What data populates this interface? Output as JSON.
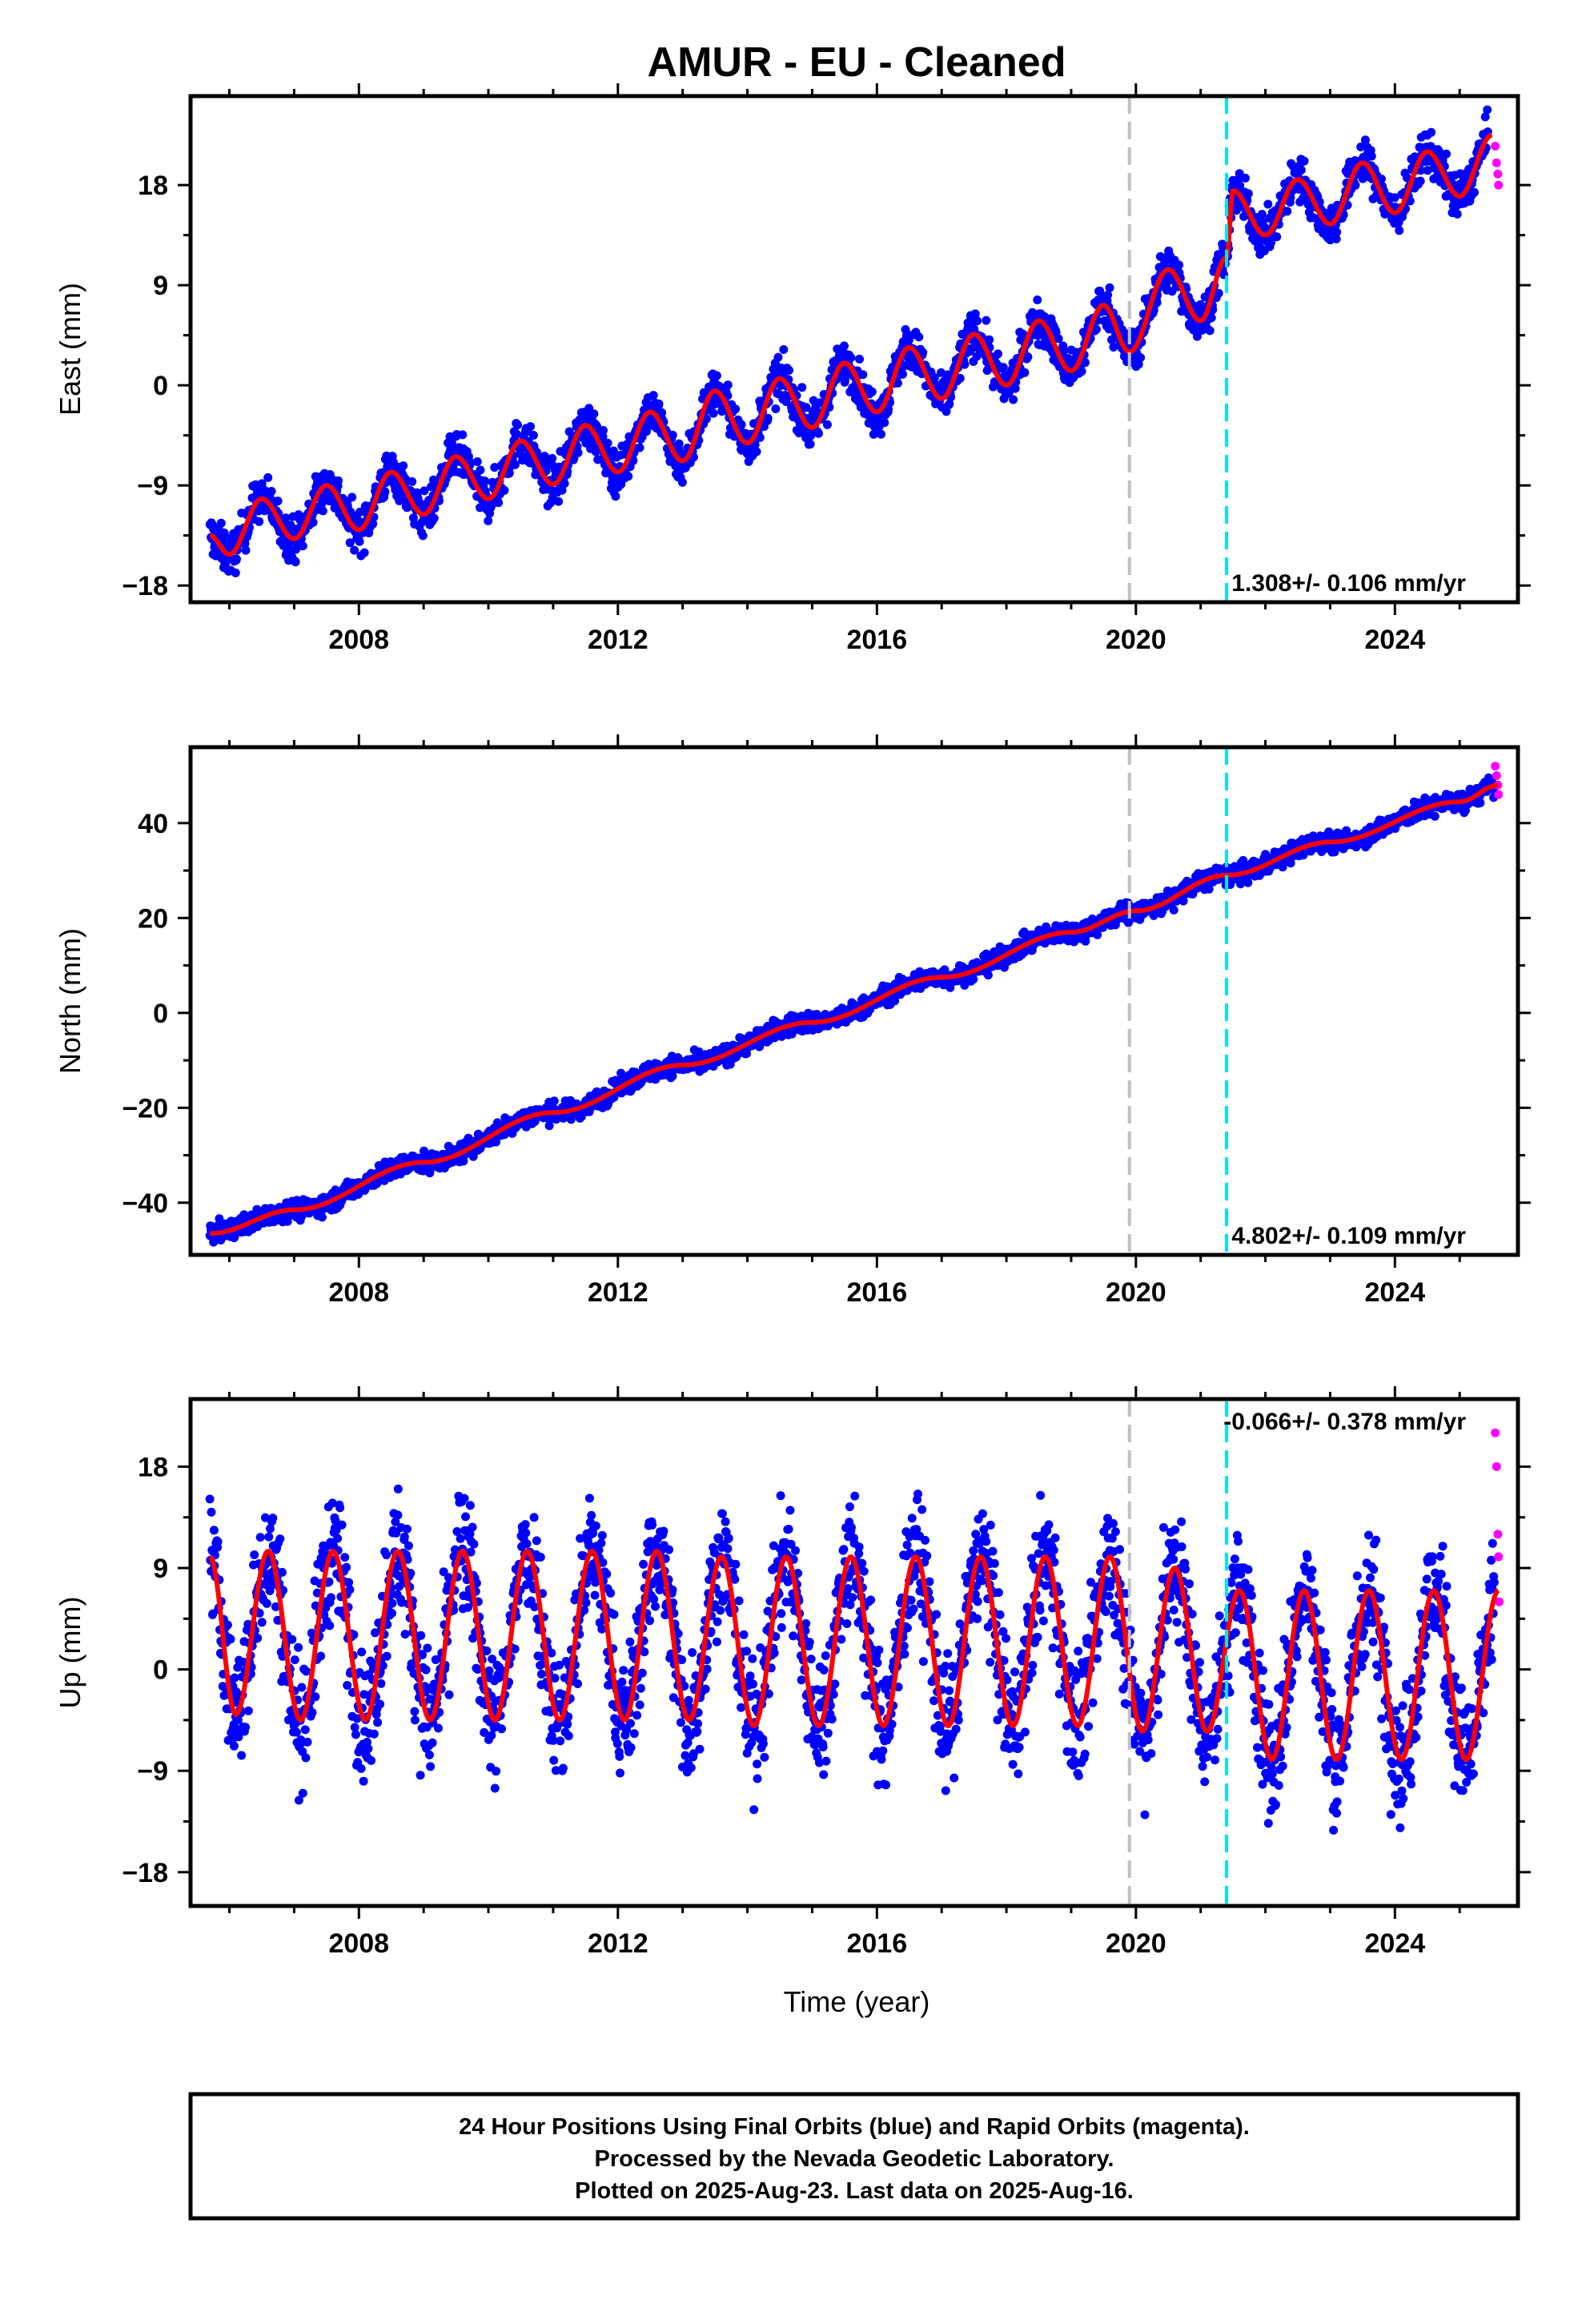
{
  "title": "AMUR  - EU - Cleaned",
  "xlabel": "Time (year)",
  "caption": [
    "24 Hour Positions Using Final Orbits (blue) and Rapid Orbits (magenta).",
    "Processed by the Nevada Geodetic Laboratory.",
    "Plotted on 2025-Aug-23. Last data on 2025-Aug-16."
  ],
  "colors": {
    "final": "#0000ff",
    "rapid": "#ff00ff",
    "model": "#ff0000",
    "event_gray": "#c0c0c0",
    "event_cyan": "#00e5ee"
  },
  "chart_data": [
    {
      "type": "scatter",
      "ylabel": "East (mm)",
      "xlim": [
        2005.4,
        2025.9
      ],
      "ylim": [
        -19.5,
        26
      ],
      "yticks": [
        -18,
        -9,
        0,
        9,
        18
      ],
      "xticks": [
        2008,
        2012,
        2016,
        2020,
        2024
      ],
      "rate_label": "1.308+/- 0.106 mm/yr",
      "rate_position": "bottom-right",
      "events": [
        {
          "x": 2019.9,
          "color": "gray"
        },
        {
          "x": 2021.4,
          "color": "cyan"
        }
      ],
      "model_knots": {
        "x": [
          2005.7,
          2006.0,
          2006.5,
          2007.0,
          2007.5,
          2008.0,
          2008.5,
          2009.0,
          2009.5,
          2010.0,
          2010.5,
          2011.0,
          2011.5,
          2012.0,
          2012.5,
          2013.0,
          2013.5,
          2014.0,
          2014.5,
          2015.0,
          2015.5,
          2016.0,
          2016.5,
          2017.0,
          2017.5,
          2018.0,
          2018.5,
          2019.0,
          2019.5,
          2019.9,
          2020.5,
          2021.0,
          2021.4,
          2021.5,
          2022.0,
          2022.5,
          2023.0,
          2023.5,
          2024.0,
          2024.5,
          2025.0,
          2025.5
        ],
        "y": [
          -13.5,
          -15.2,
          -10.2,
          -13.8,
          -9.0,
          -13.0,
          -7.8,
          -11.6,
          -6.4,
          -10.2,
          -5.0,
          -8.9,
          -3.6,
          -7.8,
          -2.4,
          -6.8,
          -0.5,
          -5.2,
          0.6,
          -3.8,
          2.0,
          -2.4,
          3.4,
          -1.2,
          4.6,
          0.0,
          5.8,
          1.3,
          7.2,
          3.0,
          10.4,
          5.8,
          11.5,
          17.5,
          13.5,
          18.5,
          14.5,
          20.0,
          15.5,
          21.0,
          17.0,
          22.5
        ]
      },
      "scatter_amplitude_mm": 1.7,
      "rapid_points": {
        "x": [
          2025.55,
          2025.57,
          2025.59,
          2025.6
        ],
        "y": [
          21.5,
          20.0,
          19.0,
          18.0
        ]
      }
    },
    {
      "type": "scatter",
      "ylabel": "North (mm)",
      "xlim": [
        2005.4,
        2025.9
      ],
      "ylim": [
        -51,
        56
      ],
      "yticks": [
        -40,
        -20,
        0,
        20,
        40
      ],
      "xticks": [
        2008,
        2012,
        2016,
        2020,
        2024
      ],
      "rate_label": "4.802+/- 0.109 mm/yr",
      "rate_position": "bottom-right",
      "events": [
        {
          "x": 2019.9,
          "color": "gray"
        },
        {
          "x": 2021.4,
          "color": "cyan"
        }
      ],
      "model_knots": {
        "x": [
          2005.7,
          2007.0,
          2009.0,
          2011.0,
          2013.0,
          2015.0,
          2017.0,
          2019.0,
          2020.0,
          2021.4,
          2023.0,
          2025.0,
          2025.6
        ],
        "y": [
          -46.5,
          -41.5,
          -31.5,
          -21.0,
          -11.0,
          -2.0,
          7.5,
          17.0,
          21.5,
          29.0,
          36.0,
          44.5,
          48.0
        ]
      },
      "scatter_amplitude_mm": 1.8,
      "rapid_points": {
        "x": [
          2025.55,
          2025.57,
          2025.59,
          2025.6
        ],
        "y": [
          52.0,
          50.0,
          48.0,
          46.0
        ]
      }
    },
    {
      "type": "scatter",
      "ylabel": "Up (mm)",
      "xlim": [
        2005.4,
        2025.9
      ],
      "ylim": [
        -21,
        24
      ],
      "yticks": [
        -18,
        -9,
        0,
        9,
        18
      ],
      "xticks": [
        2008,
        2012,
        2016,
        2020,
        2024
      ],
      "rate_label": "-0.066+/- 0.378 mm/yr",
      "rate_position": "top-right",
      "events": [
        {
          "x": 2019.9,
          "color": "gray"
        },
        {
          "x": 2021.4,
          "color": "cyan"
        }
      ],
      "model_knots": {
        "x": [
          2005.7,
          2006.1,
          2006.6,
          2007.1,
          2007.6,
          2008.1,
          2008.6,
          2009.1,
          2009.6,
          2010.1,
          2010.6,
          2011.1,
          2011.6,
          2012.1,
          2012.6,
          2013.1,
          2013.6,
          2014.1,
          2014.6,
          2015.1,
          2015.6,
          2016.1,
          2016.6,
          2017.1,
          2017.6,
          2018.1,
          2018.6,
          2019.1,
          2019.6,
          2020.1,
          2020.6,
          2021.1,
          2021.6,
          2022.1,
          2022.6,
          2023.1,
          2023.6,
          2024.1,
          2024.6,
          2025.1,
          2025.6
        ],
        "y": [
          10.0,
          -4.0,
          10.5,
          -4.5,
          10.5,
          -4.5,
          10.5,
          -4.5,
          10.5,
          -4.5,
          10.5,
          -4.5,
          10.5,
          -4.5,
          10.5,
          -4.5,
          10.0,
          -5.0,
          10.0,
          -5.0,
          10.0,
          -5.0,
          10.0,
          -5.0,
          10.0,
          -5.0,
          10.0,
          -5.0,
          10.0,
          -5.5,
          9.0,
          -5.5,
          7.0,
          -8.0,
          7.0,
          -8.0,
          7.0,
          -8.0,
          7.0,
          -8.0,
          7.0
        ]
      },
      "scatter_amplitude_mm": 5.0,
      "rapid_points": {
        "x": [
          2025.55,
          2025.57,
          2025.59,
          2025.6,
          2025.61
        ],
        "y": [
          21.0,
          18.0,
          12.0,
          10.0,
          6.0
        ]
      }
    }
  ]
}
